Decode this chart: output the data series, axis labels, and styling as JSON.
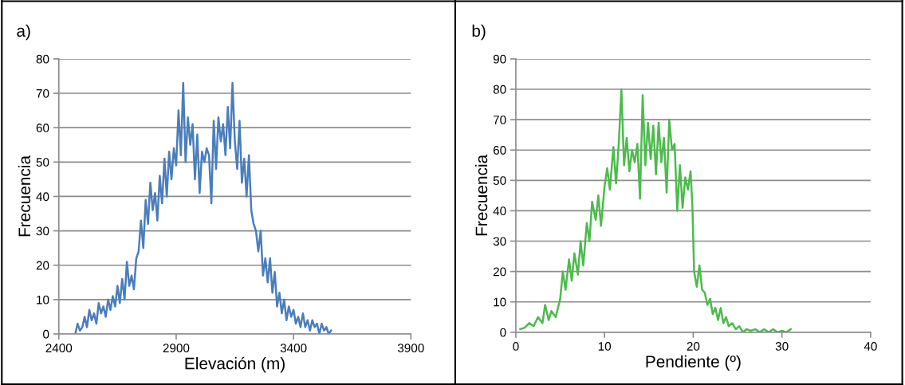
{
  "chart_data": [
    {
      "type": "line",
      "xlabel": "Elevación (m)",
      "ylabel": "Frecuencia",
      "annotations": [
        "a)"
      ],
      "xlim": [
        2400,
        3900
      ],
      "xticks": [
        2400,
        2900,
        3400,
        3900
      ],
      "ylim": [
        0,
        80
      ],
      "yticks": [
        0,
        10,
        20,
        30,
        40,
        50,
        60,
        70,
        80
      ],
      "grid": "y",
      "series": [
        {
          "color": "#4a7ebb",
          "x": [
            2470,
            2480,
            2490,
            2500,
            2510,
            2520,
            2530,
            2540,
            2550,
            2560,
            2570,
            2580,
            2590,
            2600,
            2610,
            2620,
            2630,
            2640,
            2650,
            2660,
            2670,
            2680,
            2690,
            2700,
            2710,
            2720,
            2730,
            2740,
            2750,
            2760,
            2770,
            2780,
            2790,
            2800,
            2810,
            2820,
            2830,
            2840,
            2850,
            2860,
            2870,
            2880,
            2890,
            2900,
            2910,
            2920,
            2930,
            2940,
            2950,
            2960,
            2970,
            2980,
            2990,
            3000,
            3010,
            3020,
            3030,
            3040,
            3050,
            3060,
            3070,
            3080,
            3090,
            3100,
            3110,
            3120,
            3130,
            3140,
            3150,
            3160,
            3170,
            3180,
            3190,
            3200,
            3210,
            3220,
            3230,
            3240,
            3250,
            3260,
            3270,
            3280,
            3290,
            3300,
            3310,
            3320,
            3330,
            3340,
            3350,
            3360,
            3370,
            3380,
            3390,
            3400,
            3410,
            3420,
            3430,
            3440,
            3450,
            3460,
            3470,
            3480,
            3490,
            3500,
            3510,
            3520,
            3530,
            3540,
            3550,
            3560
          ],
          "values": [
            0,
            3,
            1,
            2,
            5,
            2,
            7,
            4,
            6,
            3,
            9,
            6,
            8,
            5,
            10,
            7,
            11,
            8,
            14,
            9,
            16,
            10,
            21,
            14,
            17,
            13,
            22,
            24,
            33,
            25,
            39,
            32,
            44,
            36,
            41,
            33,
            46,
            38,
            51,
            40,
            53,
            45,
            54,
            49,
            65,
            52,
            73,
            50,
            63,
            55,
            61,
            45,
            58,
            41,
            53,
            50,
            54,
            52,
            38,
            62,
            48,
            63,
            56,
            61,
            52,
            66,
            54,
            73,
            56,
            48,
            62,
            44,
            51,
            40,
            52,
            36,
            32,
            30,
            24,
            30,
            17,
            22,
            15,
            22,
            12,
            18,
            8,
            12,
            6,
            10,
            4,
            8,
            5,
            7,
            3,
            5,
            2,
            6,
            2,
            4,
            1,
            4,
            2,
            3,
            0,
            3,
            1,
            2,
            0,
            1
          ]
        }
      ]
    },
    {
      "type": "line",
      "xlabel": "Pendiente (º)",
      "ylabel": "Frecuencia",
      "annotations": [
        "b)"
      ],
      "xlim": [
        0,
        40
      ],
      "xticks": [
        0,
        10,
        20,
        30,
        40
      ],
      "ylim": [
        0,
        90
      ],
      "yticks": [
        0,
        10,
        20,
        30,
        40,
        50,
        60,
        70,
        80,
        90
      ],
      "grid": "y",
      "series": [
        {
          "color": "#4cbb4c",
          "x": [
            0.5,
            1,
            1.5,
            2,
            2.5,
            3,
            3.3,
            3.7,
            4,
            4.5,
            5,
            5.3,
            5.6,
            6,
            6.3,
            6.6,
            7,
            7.3,
            7.6,
            8,
            8.3,
            8.6,
            9,
            9.3,
            9.6,
            10,
            10.3,
            10.6,
            11,
            11.3,
            11.6,
            11.9,
            12.2,
            12.5,
            12.8,
            13.1,
            13.4,
            13.7,
            14,
            14.3,
            14.6,
            14.9,
            15.2,
            15.5,
            15.8,
            16.1,
            16.4,
            16.7,
            17,
            17.3,
            17.6,
            17.9,
            18.2,
            18.5,
            18.8,
            19.1,
            19.4,
            19.7,
            19.9,
            20.1,
            20.4,
            20.7,
            21,
            21.3,
            21.6,
            21.9,
            22.2,
            22.5,
            22.8,
            23.1,
            23.4,
            23.7,
            24,
            24.4,
            24.8,
            25.2,
            25.6,
            26,
            26.5,
            27,
            27.5,
            28,
            28.5,
            29,
            29.5,
            30,
            30.5,
            31
          ],
          "values": [
            1,
            1.5,
            3,
            2,
            5,
            3,
            9,
            4,
            7,
            5,
            11,
            20,
            14,
            24,
            17,
            26,
            19,
            30,
            22,
            36,
            30,
            43,
            37,
            45,
            35,
            48,
            54,
            47,
            61,
            49,
            62,
            80,
            55,
            64,
            53,
            60,
            56,
            62,
            44,
            78,
            55,
            69,
            57,
            68,
            52,
            69,
            56,
            64,
            46,
            70,
            60,
            62,
            40,
            55,
            41,
            51,
            47,
            53,
            42,
            20,
            15,
            22,
            14,
            13,
            9,
            11,
            6,
            8,
            4,
            8,
            3,
            5,
            2,
            3,
            1,
            2,
            0,
            1,
            0.5,
            1,
            0,
            1,
            0,
            1,
            0,
            0.5,
            0,
            1
          ]
        }
      ]
    }
  ]
}
